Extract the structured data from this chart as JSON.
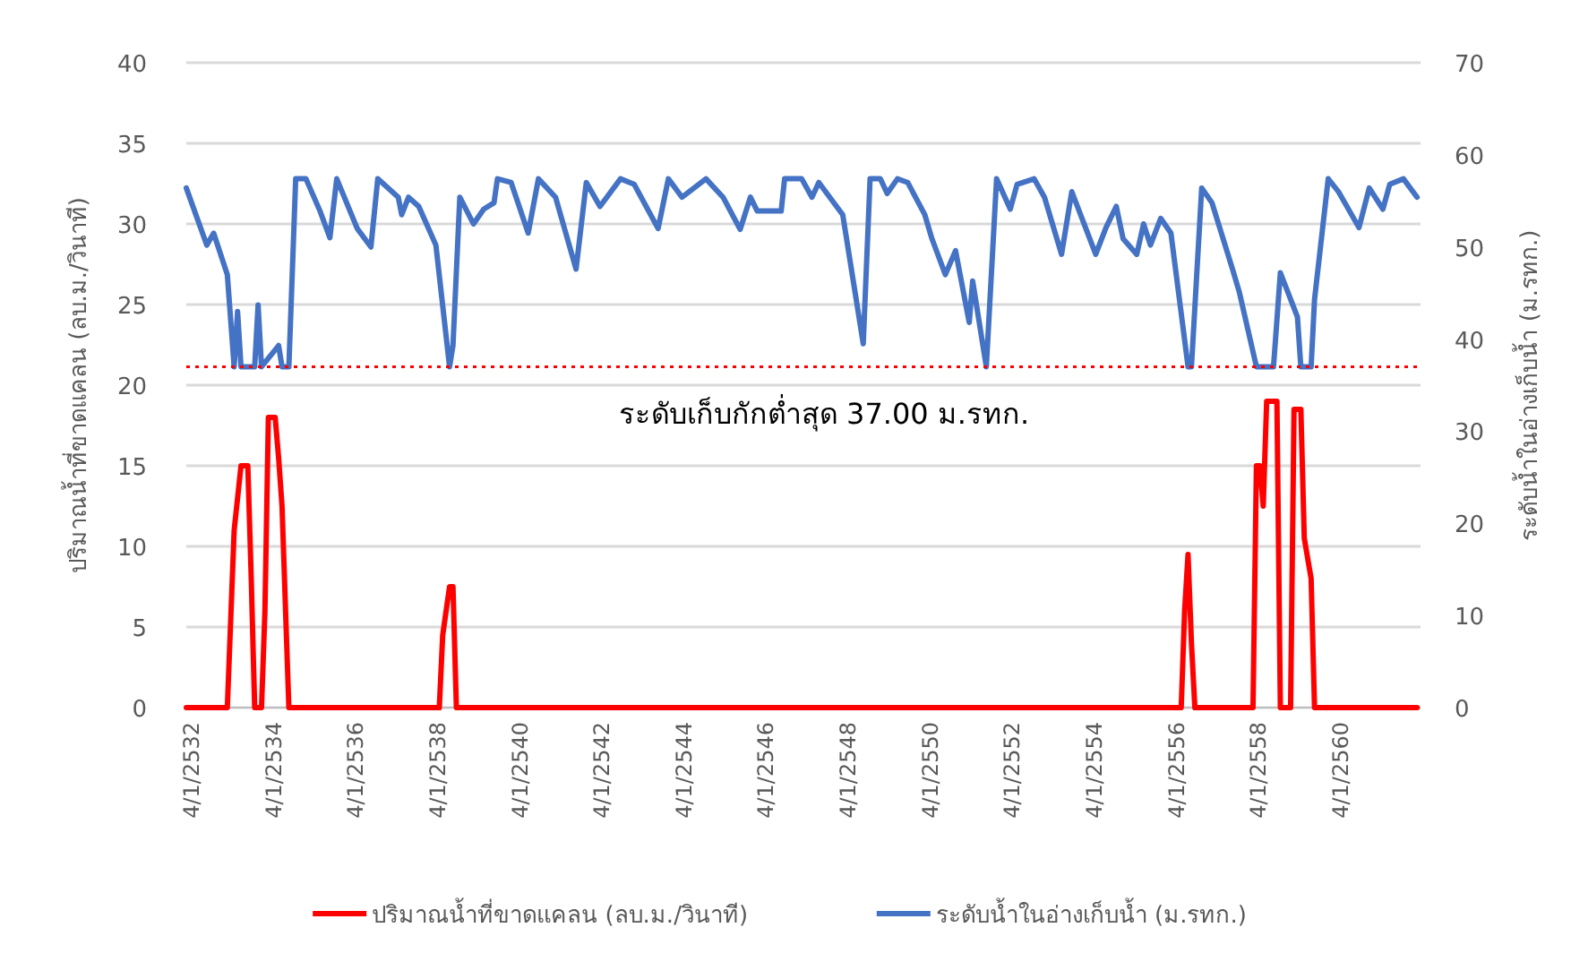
{
  "chart_data": {
    "type": "line",
    "xlim": [
      "2532-02",
      "2562-03"
    ],
    "xticks": [
      {
        "value": "2532-04-01",
        "label": "4/1/2532"
      },
      {
        "value": "2534-04-01",
        "label": "4/1/2534"
      },
      {
        "value": "2536-04-01",
        "label": "4/1/2536"
      },
      {
        "value": "2538-04-01",
        "label": "4/1/2538"
      },
      {
        "value": "2540-04-01",
        "label": "4/1/2540"
      },
      {
        "value": "2542-04-01",
        "label": "4/1/2542"
      },
      {
        "value": "2544-04-01",
        "label": "4/1/2544"
      },
      {
        "value": "2546-04-01",
        "label": "4/1/2546"
      },
      {
        "value": "2548-04-01",
        "label": "4/1/2548"
      },
      {
        "value": "2550-04-01",
        "label": "4/1/2550"
      },
      {
        "value": "2552-04-01",
        "label": "4/1/2552"
      },
      {
        "value": "2554-04-01",
        "label": "4/1/2554"
      },
      {
        "value": "2556-04-01",
        "label": "4/1/2556"
      },
      {
        "value": "2558-04-01",
        "label": "4/1/2558"
      },
      {
        "value": "2560-04-01",
        "label": "4/1/2560"
      }
    ],
    "ylim": [
      0,
      40
    ],
    "yticks": [
      0,
      5,
      10,
      15,
      20,
      25,
      30,
      35,
      40
    ],
    "y2lim": [
      0,
      70
    ],
    "y2ticks": [
      0,
      10,
      20,
      30,
      40,
      50,
      60,
      70
    ],
    "ylabel": "ปริมาณน้ำที่ขาดแคลน (ลบ.ม./วินาที)",
    "y2label": "ระดับน้ำในอ่างเก็บน้ำ (ม.รทก.)",
    "grid": "y",
    "legend": "bottom",
    "ref_lines": [
      {
        "axis": "y2",
        "value": 37,
        "label": "ระดับเก็บกักต่ำสุด 37.00 ม.รทก.",
        "color": "#ff0000",
        "line_style": "dotted"
      }
    ],
    "series": [
      {
        "name": "ปริมาณน้ำที่ขาดแคลน (ลบ.ม./วินาที)",
        "color": "#ff0000",
        "axis": "y",
        "x": [
          "2532-02",
          "2533-02",
          "2533-04",
          "2533-06",
          "2533-08",
          "2533-09",
          "2533-10",
          "2533-12",
          "2534-01",
          "2534-02",
          "2534-04",
          "2534-05",
          "2534-06",
          "2534-08",
          "2538-04",
          "2538-05",
          "2538-07",
          "2538-08",
          "2538-09",
          "2556-05",
          "2556-06",
          "2556-07",
          "2556-08",
          "2556-09",
          "2558-02",
          "2558-03",
          "2558-04",
          "2558-05",
          "2558-06",
          "2558-09",
          "2558-10",
          "2559-01",
          "2559-02",
          "2559-04",
          "2559-05",
          "2559-07",
          "2559-08",
          "2562-02"
        ],
        "values": [
          0,
          0,
          11,
          15,
          15,
          8,
          0,
          0,
          6,
          18,
          18,
          15.5,
          12.5,
          0,
          0,
          4.5,
          7.5,
          7.5,
          0,
          0,
          6,
          9.5,
          4,
          0,
          0,
          15,
          15,
          12.5,
          19,
          19,
          0,
          0,
          18.5,
          18.5,
          10.5,
          8,
          0,
          0
        ]
      },
      {
        "name": "ระดับน้ำในอ่างเก็บน้ำ (ม.รทก.)",
        "color": "#4472c4",
        "axis": "y2",
        "x": [
          "2532-02",
          "2532-08",
          "2532-10",
          "2533-02",
          "2533-04",
          "2533-05",
          "2533-06",
          "2533-10",
          "2533-11",
          "2533-12",
          "2534-05",
          "2534-06",
          "2534-08",
          "2534-10",
          "2535-01",
          "2535-05",
          "2535-08",
          "2535-10",
          "2536-04",
          "2536-08",
          "2536-10",
          "2537-04",
          "2537-05",
          "2537-07",
          "2537-10",
          "2538-03",
          "2538-07",
          "2538-08",
          "2538-10",
          "2539-02",
          "2539-05",
          "2539-08",
          "2539-09",
          "2540-01",
          "2540-06",
          "2540-09",
          "2541-02",
          "2541-08",
          "2541-11",
          "2542-03",
          "2542-09",
          "2543-01",
          "2543-08",
          "2543-11",
          "2544-03",
          "2544-10",
          "2545-03",
          "2545-08",
          "2545-11",
          "2546-01",
          "2546-08",
          "2546-09",
          "2547-02",
          "2547-05",
          "2547-07",
          "2548-02",
          "2548-08",
          "2548-10",
          "2549-01",
          "2549-03",
          "2549-06",
          "2549-09",
          "2550-02",
          "2550-04",
          "2550-08",
          "2550-11",
          "2551-03",
          "2551-04",
          "2551-08",
          "2551-11",
          "2552-03",
          "2552-05",
          "2552-10",
          "2553-01",
          "2553-06",
          "2553-09",
          "2554-04",
          "2554-07",
          "2554-10",
          "2554-12",
          "2555-04",
          "2555-06",
          "2555-08",
          "2555-11",
          "2556-02",
          "2556-07",
          "2556-08",
          "2556-11",
          "2557-02",
          "2557-08",
          "2557-10",
          "2558-03",
          "2558-08",
          "2558-10",
          "2559-03",
          "2559-04",
          "2559-07",
          "2559-08",
          "2559-12",
          "2560-03",
          "2560-09",
          "2560-12",
          "2561-04",
          "2561-06",
          "2561-10",
          "2562-02"
        ],
        "values": [
          56.4,
          50.2,
          51.5,
          47,
          37,
          43,
          37,
          37,
          43.7,
          37,
          39.3,
          37,
          37,
          57.4,
          57.4,
          54,
          51,
          57.4,
          52,
          50,
          57.4,
          55.4,
          53.5,
          55.4,
          54.4,
          50.2,
          37,
          39.3,
          55.4,
          52.5,
          54.1,
          54.8,
          57.4,
          57,
          51.5,
          57.4,
          55.4,
          47.6,
          57,
          54.4,
          57.4,
          56.8,
          52,
          57.4,
          55.4,
          57.4,
          55.4,
          51.9,
          55.4,
          53.9,
          53.9,
          57.4,
          57.4,
          55.4,
          57,
          53.5,
          39.5,
          57.4,
          57.4,
          55.8,
          57.4,
          57,
          53.5,
          51,
          47,
          49.6,
          41.8,
          46.3,
          37,
          57.4,
          54.1,
          56.8,
          57.4,
          55.4,
          49.2,
          56,
          49.2,
          52.1,
          54.4,
          50.9,
          49.2,
          52.5,
          50.2,
          53.1,
          51.5,
          37,
          37,
          56.4,
          54.8,
          47.6,
          45.1,
          37,
          37,
          47.2,
          42.4,
          37,
          37,
          44.3,
          57.4,
          56,
          52.1,
          56.4,
          54.1,
          56.8,
          57.4,
          55.4
        ]
      }
    ]
  }
}
